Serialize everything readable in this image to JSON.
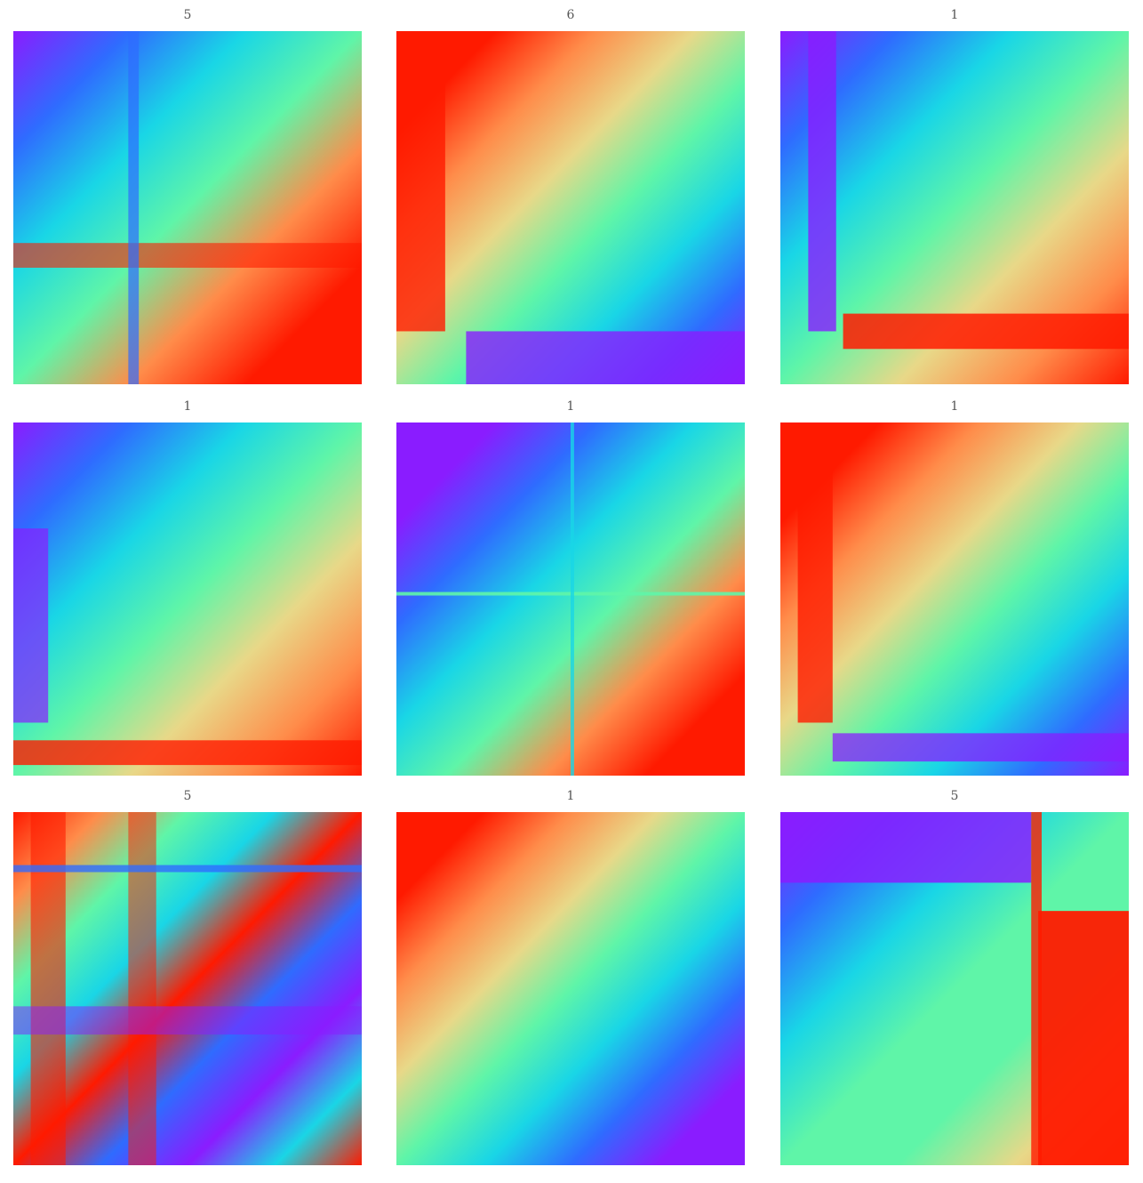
{
  "panels": [
    {
      "title": "5"
    },
    {
      "title": "6"
    },
    {
      "title": "1"
    },
    {
      "title": "1"
    },
    {
      "title": "1"
    },
    {
      "title": "1"
    },
    {
      "title": "5"
    },
    {
      "title": "1"
    },
    {
      "title": "5"
    }
  ]
}
